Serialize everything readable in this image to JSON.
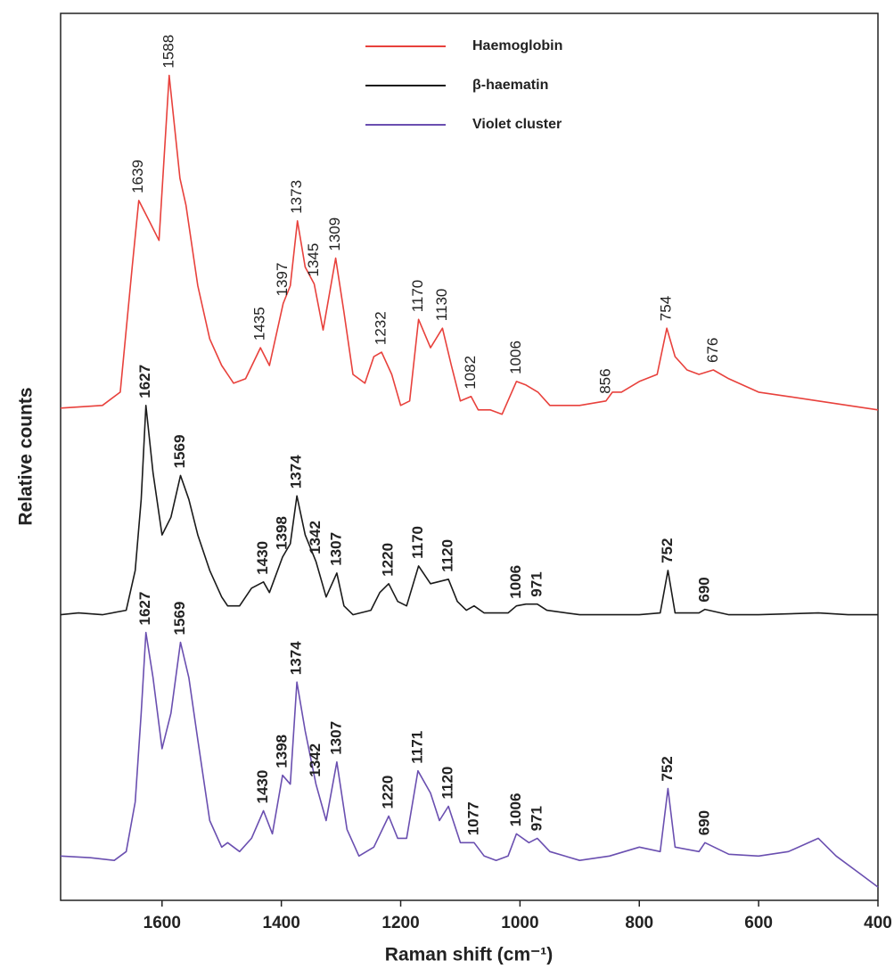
{
  "chart_data": {
    "type": "line",
    "xlabel": "Raman shift (cm⁻¹)",
    "ylabel": "Relative counts",
    "xlim": [
      1770,
      400
    ],
    "ylim": [
      0,
      100
    ],
    "xticks": [
      1600,
      1400,
      1200,
      1000,
      800,
      600,
      400
    ],
    "legend": "upper center",
    "series": [
      {
        "name": "Haemoglobin",
        "color": "#e8413c",
        "x": [
          1770,
          1700,
          1670,
          1650,
          1639,
          1620,
          1605,
          1588,
          1570,
          1560,
          1540,
          1520,
          1500,
          1480,
          1460,
          1435,
          1420,
          1397,
          1385,
          1373,
          1360,
          1345,
          1330,
          1309,
          1295,
          1280,
          1260,
          1245,
          1232,
          1215,
          1200,
          1185,
          1170,
          1150,
          1130,
          1115,
          1100,
          1082,
          1070,
          1050,
          1030,
          1006,
          990,
          970,
          950,
          900,
          856,
          845,
          830,
          800,
          770,
          754,
          740,
          720,
          700,
          676,
          650,
          600,
          550,
          500,
          450,
          400
        ],
        "values": [
          55.5,
          55.8,
          57.3,
          71.4,
          78.9,
          76.4,
          74.4,
          93.0,
          81.4,
          78.4,
          69.3,
          63.3,
          60.3,
          58.3,
          58.8,
          62.3,
          60.3,
          67.3,
          69.3,
          76.6,
          71.4,
          69.5,
          64.3,
          72.4,
          66.3,
          59.3,
          58.3,
          61.3,
          61.8,
          59.3,
          55.8,
          56.3,
          65.5,
          62.3,
          64.5,
          60.3,
          56.3,
          56.8,
          55.3,
          55.3,
          54.8,
          58.5,
          58.1,
          57.3,
          55.8,
          55.8,
          56.3,
          57.3,
          57.3,
          58.5,
          59.3,
          64.5,
          61.3,
          59.8,
          59.3,
          59.8,
          58.8,
          57.3,
          56.8,
          56.3,
          55.8,
          55.3
        ],
        "peaks": [
          1639,
          1588,
          1435,
          1397,
          1373,
          1345,
          1309,
          1232,
          1170,
          1130,
          1082,
          1006,
          856,
          754,
          676
        ]
      },
      {
        "name": "β-haematin",
        "color": "#1a1a1a",
        "x": [
          1770,
          1740,
          1700,
          1660,
          1645,
          1635,
          1627,
          1615,
          1600,
          1585,
          1569,
          1555,
          1540,
          1520,
          1500,
          1490,
          1470,
          1450,
          1430,
          1420,
          1398,
          1385,
          1374,
          1360,
          1342,
          1325,
          1307,
          1295,
          1280,
          1250,
          1235,
          1220,
          1205,
          1190,
          1170,
          1150,
          1120,
          1105,
          1090,
          1077,
          1060,
          1020,
          1006,
          990,
          971,
          955,
          900,
          800,
          765,
          752,
          740,
          700,
          690,
          650,
          600,
          500,
          450,
          400
        ],
        "values": [
          32.2,
          32.4,
          32.2,
          32.7,
          37.2,
          45.2,
          55.8,
          48.2,
          41.2,
          43.2,
          47.9,
          45.2,
          41.2,
          37.2,
          34.2,
          33.2,
          33.2,
          35.2,
          35.9,
          34.7,
          38.7,
          40.2,
          45.6,
          41.2,
          38.2,
          34.2,
          36.9,
          33.2,
          32.2,
          32.7,
          34.7,
          35.7,
          33.7,
          33.2,
          37.7,
          35.7,
          36.2,
          33.7,
          32.7,
          33.2,
          32.4,
          32.4,
          33.2,
          33.4,
          33.4,
          32.7,
          32.2,
          32.2,
          32.4,
          37.2,
          32.4,
          32.4,
          32.8,
          32.2,
          32.2,
          32.4,
          32.2,
          32.2
        ],
        "peaks": [
          1627,
          1569,
          1430,
          1398,
          1374,
          1342,
          1307,
          1220,
          1170,
          1120,
          1006,
          971,
          752,
          690
        ]
      },
      {
        "name": "Violet cluster",
        "color": "#6a4fb0",
        "x": [
          1770,
          1720,
          1680,
          1660,
          1645,
          1635,
          1627,
          1615,
          1600,
          1585,
          1569,
          1555,
          1540,
          1520,
          1500,
          1490,
          1470,
          1450,
          1430,
          1415,
          1398,
          1385,
          1374,
          1360,
          1342,
          1325,
          1307,
          1290,
          1270,
          1245,
          1220,
          1205,
          1190,
          1171,
          1150,
          1135,
          1120,
          1100,
          1077,
          1060,
          1040,
          1020,
          1006,
          985,
          971,
          950,
          900,
          850,
          800,
          765,
          752,
          740,
          700,
          690,
          650,
          600,
          550,
          500,
          470,
          430,
          400
        ],
        "values": [
          5.0,
          4.8,
          4.5,
          5.5,
          11.1,
          21.1,
          30.2,
          25.1,
          17.1,
          21.1,
          29.1,
          25.1,
          18.1,
          9.0,
          6.0,
          6.5,
          5.5,
          7.0,
          10.1,
          7.5,
          14.1,
          13.1,
          24.6,
          19.1,
          13.1,
          9.0,
          15.6,
          8.0,
          5.0,
          6.0,
          9.5,
          7.0,
          7.0,
          14.6,
          12.1,
          9.0,
          10.6,
          6.5,
          6.5,
          5.0,
          4.5,
          5.0,
          7.5,
          6.5,
          7.0,
          5.5,
          4.5,
          5.0,
          6.0,
          5.5,
          12.6,
          6.0,
          5.5,
          6.5,
          5.2,
          5.0,
          5.5,
          7.0,
          5.0,
          3.0,
          1.5
        ],
        "peaks": [
          1627,
          1569,
          1430,
          1398,
          1374,
          1342,
          1307,
          1220,
          1171,
          1120,
          1077,
          1006,
          971,
          752,
          690
        ]
      }
    ]
  }
}
